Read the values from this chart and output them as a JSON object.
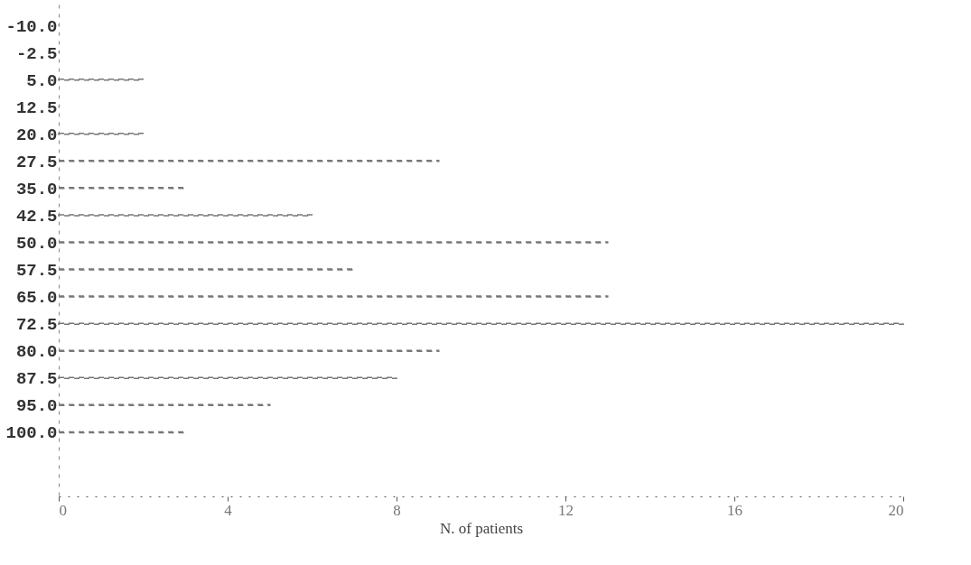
{
  "chart_data": {
    "type": "bar",
    "orientation": "horizontal",
    "xlabel": "N. of patients",
    "categories": [
      "-10.0",
      "-2.5",
      "5.0",
      "12.5",
      "20.0",
      "27.5",
      "35.0",
      "42.5",
      "50.0",
      "57.5",
      "65.0",
      "72.5",
      "80.0",
      "87.5",
      "95.0",
      "100.0"
    ],
    "values": [
      0,
      0,
      2,
      0,
      2,
      9,
      3,
      6,
      13,
      7,
      13,
      20,
      9,
      8,
      5,
      3
    ],
    "color": "#777777",
    "line_style": "dashed",
    "xlim": [
      0,
      20
    ],
    "xticks": [
      0,
      4,
      8,
      12,
      16,
      20
    ],
    "grid": false
  }
}
